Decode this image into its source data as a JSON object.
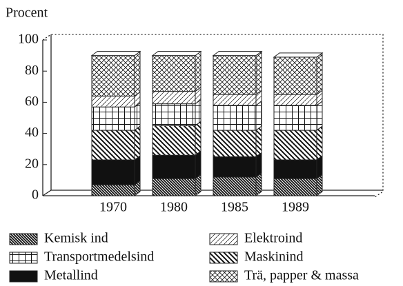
{
  "chart_data": {
    "type": "stacked_bar",
    "ylabel": "Procent",
    "categories": [
      "1970",
      "1980",
      "1985",
      "1989"
    ],
    "ylim": [
      0,
      100
    ],
    "yticks": [
      0,
      20,
      40,
      60,
      80,
      100
    ],
    "series": [
      {
        "name": "Kemisk ind",
        "color": "#111111",
        "values": [
          7,
          11,
          12,
          11
        ]
      },
      {
        "name": "Metallind",
        "color": "#111111",
        "values": [
          16,
          15,
          13,
          12
        ]
      },
      {
        "name": "Maskinind",
        "color": "#111111",
        "values": [
          19,
          19,
          17,
          19
        ]
      },
      {
        "name": "Transportmedelsind",
        "color": "#111111",
        "values": [
          15,
          14,
          16,
          16
        ]
      },
      {
        "name": "Elektroind",
        "color": "#111111",
        "values": [
          7,
          8,
          7,
          7
        ]
      },
      {
        "name": "Trä, papper & massa",
        "color": "#111111",
        "values": [
          26,
          23,
          25,
          24
        ]
      }
    ]
  }
}
